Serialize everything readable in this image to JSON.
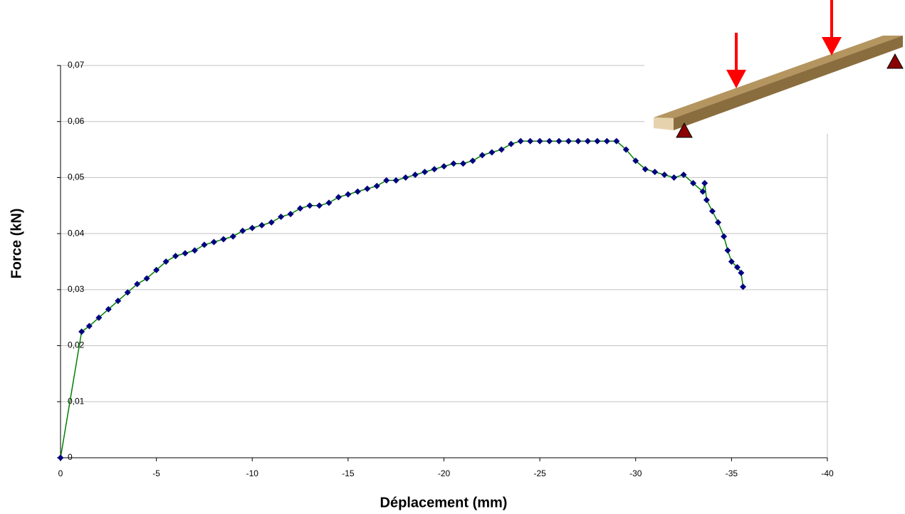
{
  "chart_data": {
    "type": "line",
    "x_label": "Déplacement (mm)",
    "y_label": "Force (kN)",
    "x": [
      0,
      -1.1,
      -1.5,
      -2,
      -2.5,
      -3,
      -3.5,
      -4,
      -4.5,
      -5,
      -5.5,
      -6,
      -6.5,
      -7,
      -7.5,
      -8,
      -8.5,
      -9,
      -9.5,
      -10,
      -10.5,
      -11,
      -11.5,
      -12,
      -12.5,
      -13,
      -13.5,
      -14,
      -14.5,
      -15,
      -15.5,
      -16,
      -16.5,
      -17,
      -17.5,
      -18,
      -18.5,
      -19,
      -19.5,
      -20,
      -20.5,
      -21,
      -21.5,
      -22,
      -22.5,
      -23,
      -23.5,
      -24,
      -24.5,
      -25,
      -25.5,
      -26,
      -26.5,
      -27,
      -27.5,
      -28,
      -28.5,
      -29,
      -29.5,
      -30,
      -30.5,
      -31,
      -31.5,
      -32,
      -32.5,
      -33,
      -33.5,
      -33.6,
      -33.7,
      -34,
      -34.3,
      -34.6,
      -34.8,
      -35,
      -35.3,
      -35.5,
      -35.6
    ],
    "values": [
      0,
      0.0225,
      0.0235,
      0.025,
      0.0265,
      0.028,
      0.0295,
      0.031,
      0.032,
      0.0335,
      0.035,
      0.036,
      0.0365,
      0.037,
      0.038,
      0.0385,
      0.039,
      0.0395,
      0.0405,
      0.041,
      0.0415,
      0.042,
      0.043,
      0.0435,
      0.0445,
      0.045,
      0.045,
      0.0455,
      0.0465,
      0.047,
      0.0475,
      0.048,
      0.0485,
      0.0495,
      0.0495,
      0.05,
      0.0505,
      0.051,
      0.0515,
      0.052,
      0.0525,
      0.0525,
      0.053,
      0.054,
      0.0545,
      0.055,
      0.056,
      0.0565,
      0.0565,
      0.0565,
      0.0565,
      0.0565,
      0.0565,
      0.0565,
      0.0565,
      0.0565,
      0.0565,
      0.0565,
      0.055,
      0.053,
      0.0515,
      0.051,
      0.0505,
      0.05,
      0.0505,
      0.049,
      0.0475,
      0.049,
      0.046,
      0.044,
      0.042,
      0.0395,
      0.037,
      0.035,
      0.034,
      0.033,
      0.0305
    ],
    "color": "#000080",
    "line_color": "#008000",
    "xlim": [
      0,
      -40
    ],
    "xticks": [
      0,
      -5,
      -10,
      -15,
      -20,
      -25,
      -30,
      -35,
      -40
    ],
    "ylim": [
      0,
      0.07
    ],
    "yticks": [
      0,
      {
        "value": 0.01,
        "label": "0,01"
      },
      {
        "value": 0.02,
        "label": "0,02"
      },
      {
        "value": 0.03,
        "label": "0,03"
      },
      {
        "value": 0.04,
        "label": "0,04"
      },
      {
        "value": 0.05,
        "label": "0,05"
      },
      {
        "value": 0.06,
        "label": "0,06"
      },
      {
        "value": 0.07,
        "label": "0,07"
      }
    ],
    "grid": true
  }
}
